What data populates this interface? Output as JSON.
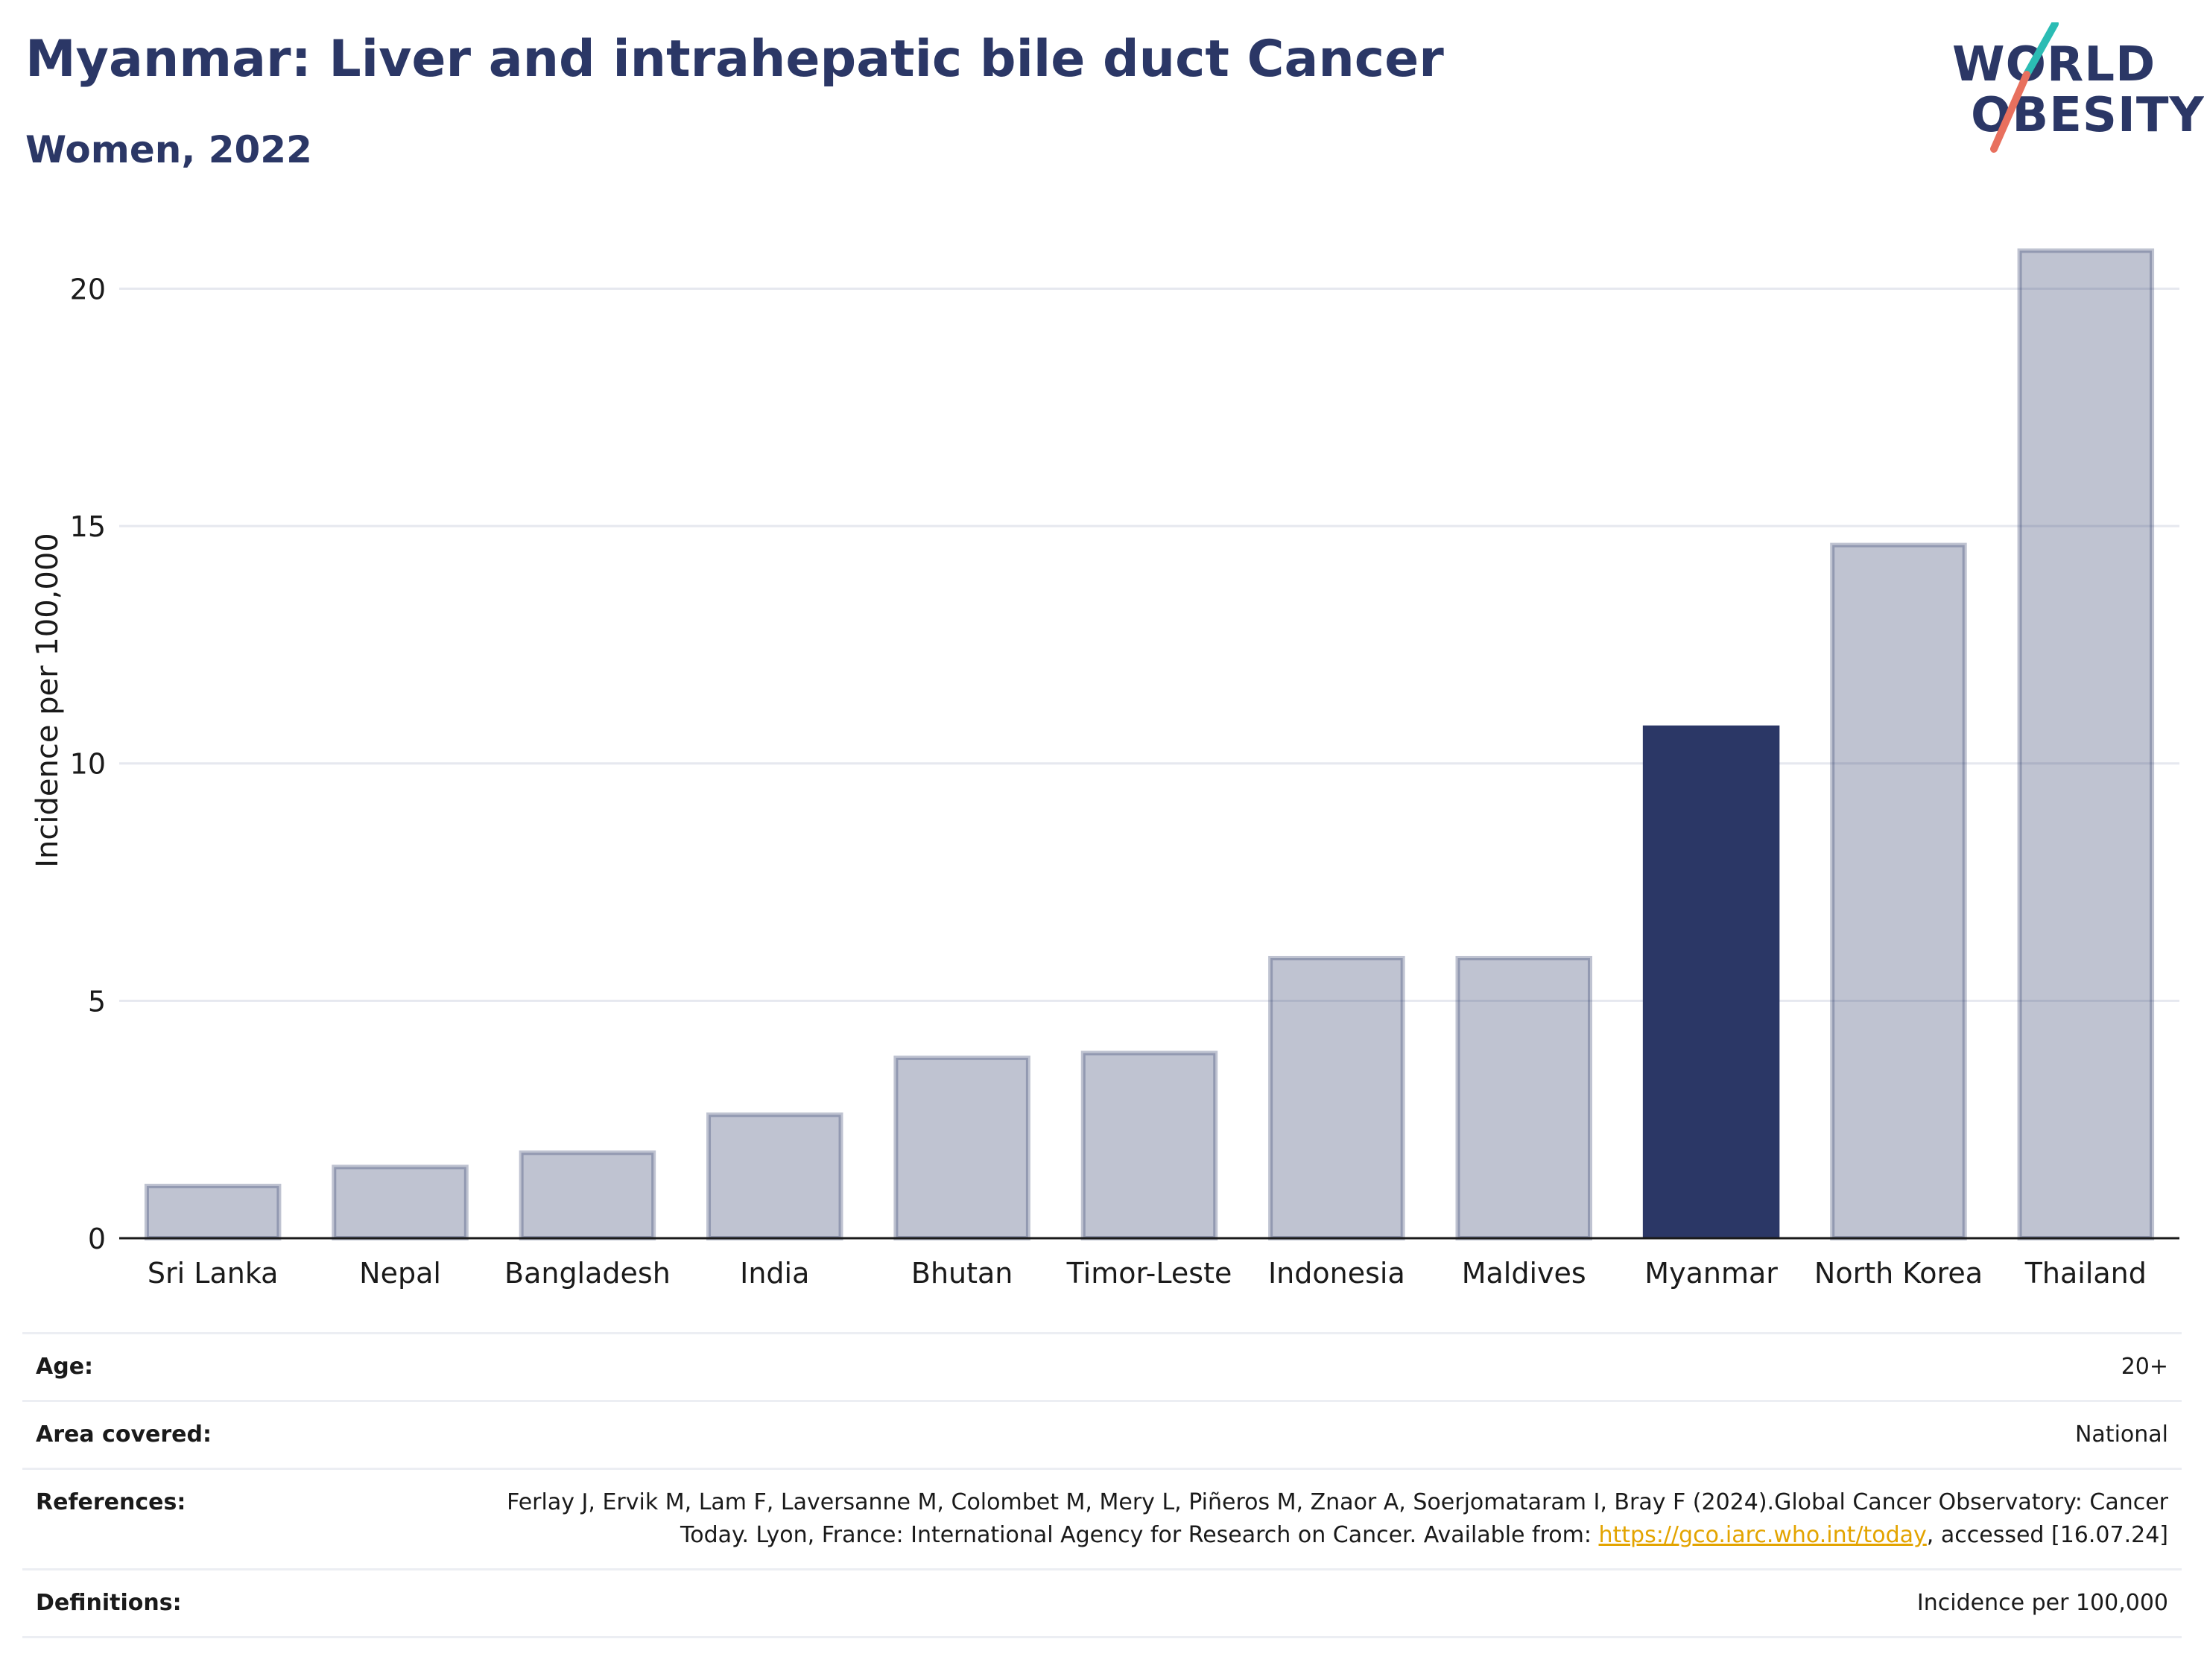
{
  "header": {
    "title": "Myanmar: Liver and intrahepatic bile duct Cancer",
    "subtitle": "Women, 2022"
  },
  "logo": {
    "line1": "WORLD",
    "line2": "OBESITY",
    "colors": {
      "text": "#2b3766",
      "teal": "#2bbcb4",
      "coral": "#e8705e"
    }
  },
  "chart_data": {
    "type": "bar",
    "categories": [
      "Sri Lanka",
      "Nepal",
      "Bangladesh",
      "India",
      "Bhutan",
      "Timor-Leste",
      "Indonesia",
      "Maldives",
      "Myanmar",
      "North Korea",
      "Thailand"
    ],
    "values": [
      1.1,
      1.5,
      1.8,
      2.6,
      3.8,
      3.9,
      5.9,
      5.9,
      10.8,
      14.6,
      20.8
    ],
    "highlight": "Myanmar",
    "title": "Myanmar: Liver and intrahepatic bile duct Cancer",
    "subtitle": "Women, 2022",
    "xlabel": "",
    "ylabel": "Incidence per 100,000",
    "ylim": [
      0,
      22
    ],
    "yticks": [
      0,
      5,
      10,
      15,
      20
    ],
    "grid": true,
    "colors": {
      "highlight": "#2b3766",
      "other": "#2b3766",
      "gridline": "#e6e8ef",
      "axis": "#1a1a1a"
    }
  },
  "info": {
    "age_label": "Age:",
    "age_value": "20+",
    "area_label": "Area covered:",
    "area_value": "National",
    "references_label": "References:",
    "references_text_1": "Ferlay J, Ervik M, Lam F, Laversanne M, Colombet M, Mery L, Piñeros M, Znaor A, Soerjomataram I, Bray F (2024).Global Cancer Observatory: Cancer Today. Lyon, France: International Agency for Research on Cancer. Available from: ",
    "references_link": "https://gco.iarc.who.int/today",
    "references_text_2": ", accessed [16.07.24]",
    "definitions_label": "Definitions:",
    "definitions_value": "Incidence per 100,000",
    "colors": {
      "link": "#e3a400"
    }
  }
}
